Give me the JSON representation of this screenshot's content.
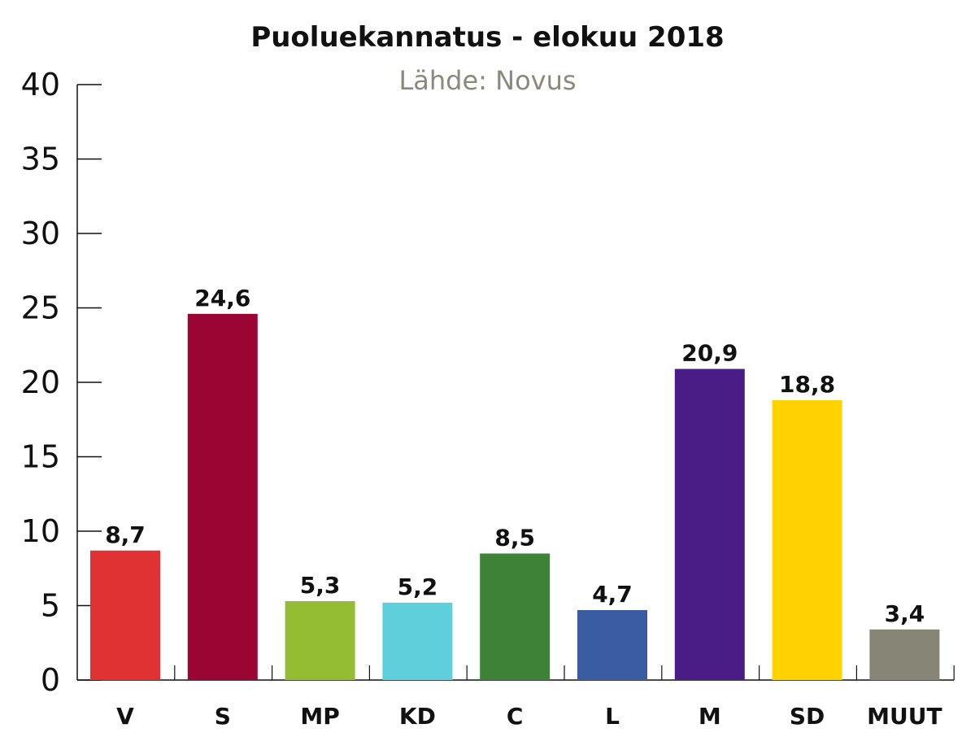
{
  "chart_data": {
    "type": "bar",
    "title": "Puoluekannatus - elokuu 2018",
    "subtitle": "Lähde: Novus",
    "xlabel": "",
    "ylabel": "",
    "ylim": [
      0,
      40
    ],
    "yticks": [
      0,
      5,
      10,
      15,
      20,
      25,
      30,
      35,
      40
    ],
    "grid": false,
    "legend": "none",
    "categories": [
      "V",
      "S",
      "MP",
      "KD",
      "C",
      "L",
      "M",
      "SD",
      "MUUT"
    ],
    "values": [
      8.7,
      24.6,
      5.3,
      5.2,
      8.5,
      4.7,
      20.9,
      18.8,
      3.4
    ],
    "value_labels": [
      "8,7",
      "24,6",
      "5,3",
      "5,2",
      "8,5",
      "4,7",
      "20,9",
      "18,8",
      "3,4"
    ],
    "colors": [
      "#e03232",
      "#9b0534",
      "#94bd34",
      "#5ecfdb",
      "#3d8237",
      "#3a5ca3",
      "#4a1d86",
      "#ffd200",
      "#878575"
    ]
  }
}
